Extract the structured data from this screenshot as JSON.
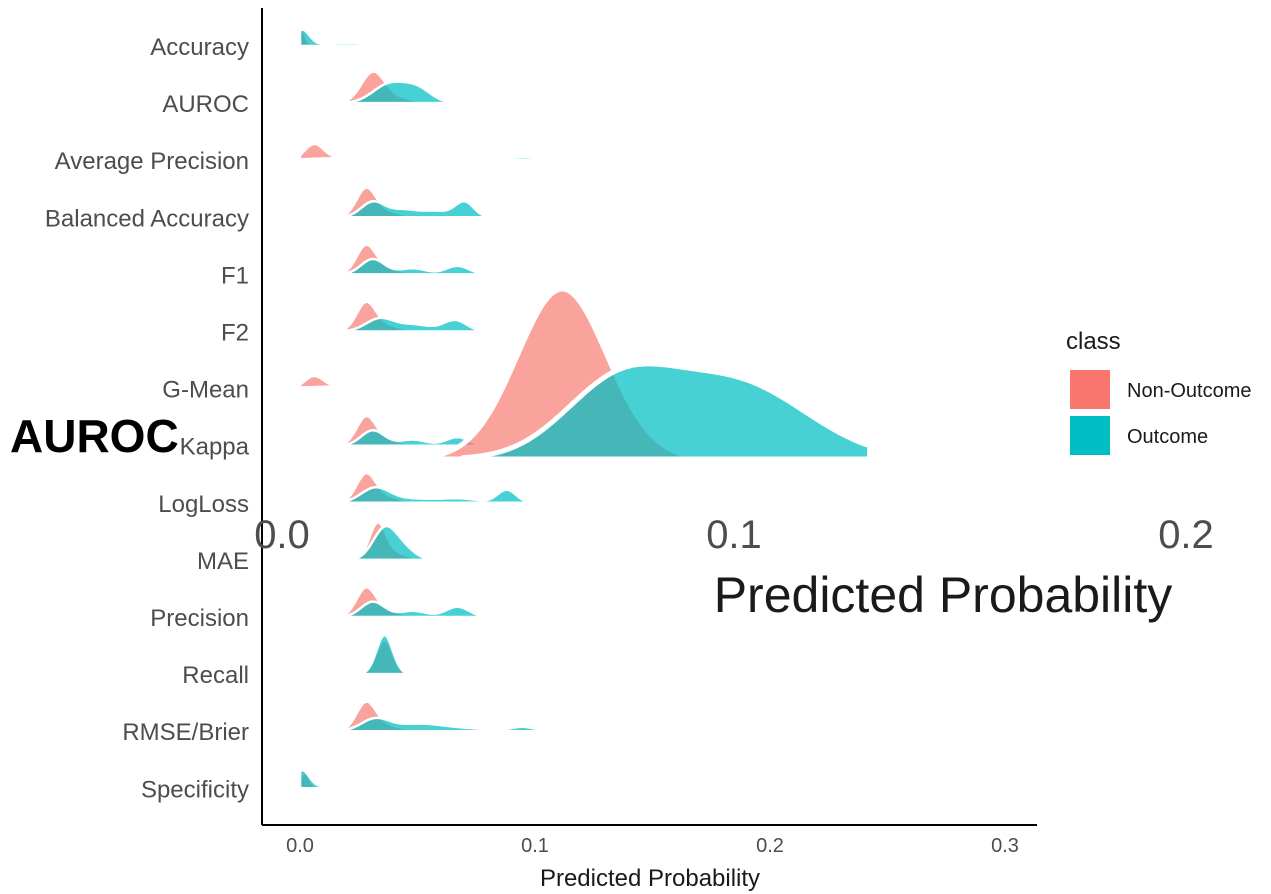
{
  "chart_data": [
    {
      "type": "ridgeline",
      "xlabel": "Predicted Probability",
      "xlim": [
        0,
        0.32
      ],
      "x_ticks": [
        "0.0",
        "0.1",
        "0.2",
        "0.3"
      ],
      "legend": {
        "title": "class",
        "position": "right",
        "entries": [
          {
            "name": "Non-Outcome",
            "color": "#F8766D"
          },
          {
            "name": "Outcome",
            "color": "#00BFC4"
          }
        ]
      },
      "categories": [
        "Accuracy",
        "AUROC",
        "Average Precision",
        "Balanced Accuracy",
        "F1",
        "F2",
        "G-Mean",
        "Kappa",
        "LogLoss",
        "MAE",
        "Precision",
        "Recall",
        "RMSE/Brier",
        "Specificity"
      ],
      "series": [
        {
          "name": "Non-Outcome",
          "x_range": [
            0.0,
            0.16
          ],
          "peaks": [
            [
              0.0,
              0.002,
              0.6
            ],
            [
              0.03,
              0.01,
              0.05
            ]
          ]
        },
        {
          "name": "Outcome",
          "x_range": [
            0.0,
            0.16
          ],
          "peaks": [
            [
              0.001,
              0.003,
              0.45
            ],
            [
              0.02,
              0.015,
              0.08
            ],
            [
              0.1,
              0.02,
              0.02
            ]
          ]
        },
        {
          "name": "Non-Outcome",
          "x_range": [
            0.018,
            0.065
          ],
          "peaks": [
            [
              0.031,
              0.005,
              0.9
            ],
            [
              0.042,
              0.006,
              0.15
            ]
          ]
        },
        {
          "name": "Outcome",
          "x_range": [
            0.018,
            0.065
          ],
          "peaks": [
            [
              0.038,
              0.007,
              0.55
            ],
            [
              0.05,
              0.006,
              0.4
            ]
          ]
        },
        {
          "name": "Non-Outcome",
          "x_range": [
            0.0,
            0.155
          ],
          "peaks": [
            [
              0.006,
              0.004,
              0.45
            ],
            [
              0.02,
              0.01,
              0.08
            ]
          ]
        },
        {
          "name": "Outcome",
          "x_range": [
            0.0,
            0.155
          ],
          "peaks": [
            [
              0.02,
              0.015,
              0.05
            ],
            [
              0.06,
              0.03,
              0.04
            ],
            [
              0.095,
              0.005,
              0.05
            ],
            [
              0.12,
              0.02,
              0.03
            ]
          ]
        },
        {
          "name": "Non-Outcome",
          "x_range": [
            0.016,
            0.082
          ],
          "peaks": [
            [
              0.028,
              0.004,
              0.75
            ],
            [
              0.035,
              0.007,
              0.2
            ]
          ]
        },
        {
          "name": "Outcome",
          "x_range": [
            0.016,
            0.082
          ],
          "peaks": [
            [
              0.031,
              0.005,
              0.45
            ],
            [
              0.044,
              0.006,
              0.22
            ],
            [
              0.07,
              0.004,
              0.45
            ],
            [
              0.058,
              0.006,
              0.18
            ]
          ]
        },
        {
          "name": "Non-Outcome",
          "x_range": [
            0.016,
            0.08
          ],
          "peaks": [
            [
              0.028,
              0.004,
              0.75
            ],
            [
              0.035,
              0.007,
              0.2
            ]
          ]
        },
        {
          "name": "Outcome",
          "x_range": [
            0.016,
            0.08
          ],
          "peaks": [
            [
              0.031,
              0.005,
              0.45
            ],
            [
              0.048,
              0.006,
              0.18
            ],
            [
              0.067,
              0.005,
              0.25
            ]
          ]
        },
        {
          "name": "Non-Outcome",
          "x_range": [
            0.016,
            0.08
          ],
          "peaks": [
            [
              0.028,
              0.004,
              0.75
            ],
            [
              0.035,
              0.007,
              0.2
            ]
          ]
        },
        {
          "name": "Outcome",
          "x_range": [
            0.016,
            0.08
          ],
          "peaks": [
            [
              0.034,
              0.006,
              0.38
            ],
            [
              0.049,
              0.007,
              0.2
            ],
            [
              0.066,
              0.005,
              0.33
            ]
          ]
        },
        {
          "name": "Non-Outcome",
          "x_range": [
            0.0,
            0.16
          ],
          "peaks": [
            [
              0.006,
              0.004,
              0.35
            ],
            [
              0.02,
              0.01,
              0.06
            ]
          ]
        },
        {
          "name": "Outcome",
          "x_range": [
            0.0,
            0.16
          ],
          "peaks": [
            [
              0.02,
              0.02,
              0.05
            ],
            [
              0.07,
              0.03,
              0.05
            ],
            [
              0.12,
              0.02,
              0.04
            ]
          ]
        },
        {
          "name": "Non-Outcome",
          "x_range": [
            0.016,
            0.08
          ],
          "peaks": [
            [
              0.028,
              0.004,
              0.75
            ],
            [
              0.035,
              0.007,
              0.2
            ]
          ]
        },
        {
          "name": "Outcome",
          "x_range": [
            0.016,
            0.08
          ],
          "peaks": [
            [
              0.031,
              0.005,
              0.45
            ],
            [
              0.048,
              0.006,
              0.18
            ],
            [
              0.067,
              0.005,
              0.25
            ]
          ]
        },
        {
          "name": "Non-Outcome",
          "x_range": [
            0.016,
            0.1
          ],
          "peaks": [
            [
              0.028,
              0.004,
              0.75
            ],
            [
              0.035,
              0.007,
              0.2
            ]
          ]
        },
        {
          "name": "Outcome",
          "x_range": [
            0.016,
            0.1
          ],
          "peaks": [
            [
              0.032,
              0.006,
              0.42
            ],
            [
              0.047,
              0.01,
              0.12
            ],
            [
              0.068,
              0.008,
              0.12
            ],
            [
              0.088,
              0.004,
              0.38
            ]
          ]
        },
        {
          "name": "Non-Outcome",
          "x_range": [
            0.02,
            0.058
          ],
          "peaks": [
            [
              0.033,
              0.0035,
              1.0
            ],
            [
              0.04,
              0.006,
              0.2
            ]
          ]
        },
        {
          "name": "Outcome",
          "x_range": [
            0.02,
            0.058
          ],
          "peaks": [
            [
              0.036,
              0.005,
              0.9
            ],
            [
              0.044,
              0.005,
              0.3
            ]
          ]
        },
        {
          "name": "Non-Outcome",
          "x_range": [
            0.016,
            0.08
          ],
          "peaks": [
            [
              0.028,
              0.004,
              0.75
            ],
            [
              0.035,
              0.007,
              0.2
            ]
          ]
        },
        {
          "name": "Outcome",
          "x_range": [
            0.016,
            0.08
          ],
          "peaks": [
            [
              0.031,
              0.005,
              0.45
            ],
            [
              0.048,
              0.006,
              0.18
            ],
            [
              0.067,
              0.005,
              0.3
            ]
          ]
        },
        {
          "name": "Non-Outcome",
          "x_range": [
            0.025,
            0.05
          ],
          "peaks": [
            [
              0.036,
              0.0035,
              1.0
            ]
          ]
        },
        {
          "name": "Outcome",
          "x_range": [
            0.025,
            0.05
          ],
          "peaks": [
            [
              0.036,
              0.0035,
              1.15
            ]
          ]
        },
        {
          "name": "Non-Outcome",
          "x_range": [
            0.016,
            0.16
          ],
          "peaks": [
            [
              0.028,
              0.004,
              0.75
            ],
            [
              0.035,
              0.007,
              0.2
            ]
          ]
        },
        {
          "name": "Outcome",
          "x_range": [
            0.016,
            0.16
          ],
          "peaks": [
            [
              0.032,
              0.006,
              0.35
            ],
            [
              0.05,
              0.01,
              0.2
            ],
            [
              0.07,
              0.012,
              0.08
            ],
            [
              0.095,
              0.005,
              0.12
            ],
            [
              0.13,
              0.01,
              0.03
            ]
          ]
        },
        {
          "name": "Non-Outcome",
          "x_range": [
            0.0,
            0.13
          ],
          "peaks": [
            [
              0.002,
              0.002,
              0.45
            ],
            [
              0.02,
              0.01,
              0.03
            ]
          ]
        },
        {
          "name": "Outcome",
          "x_range": [
            0.0,
            0.13
          ],
          "peaks": [
            [
              0.001,
              0.003,
              0.5
            ],
            [
              0.02,
              0.015,
              0.07
            ],
            [
              0.06,
              0.02,
              0.02
            ]
          ]
        }
      ]
    },
    {
      "type": "ridgeline",
      "title": "AUROC",
      "xlabel": "Predicted Probability",
      "xlim": [
        0.0,
        0.22
      ],
      "x_ticks": [
        "0.0",
        "0.1",
        "0.2"
      ],
      "series": [
        {
          "name": "Non-Outcome",
          "x_range": [
            0.035,
            0.09
          ],
          "peaks": [
            [
              0.062,
              0.01,
              1.0
            ]
          ]
        },
        {
          "name": "Outcome",
          "x_range": [
            0.04,
            0.13
          ],
          "peaks": [
            [
              0.074,
              0.012,
              0.4
            ],
            [
              0.1,
              0.016,
              0.45
            ]
          ]
        }
      ]
    }
  ]
}
